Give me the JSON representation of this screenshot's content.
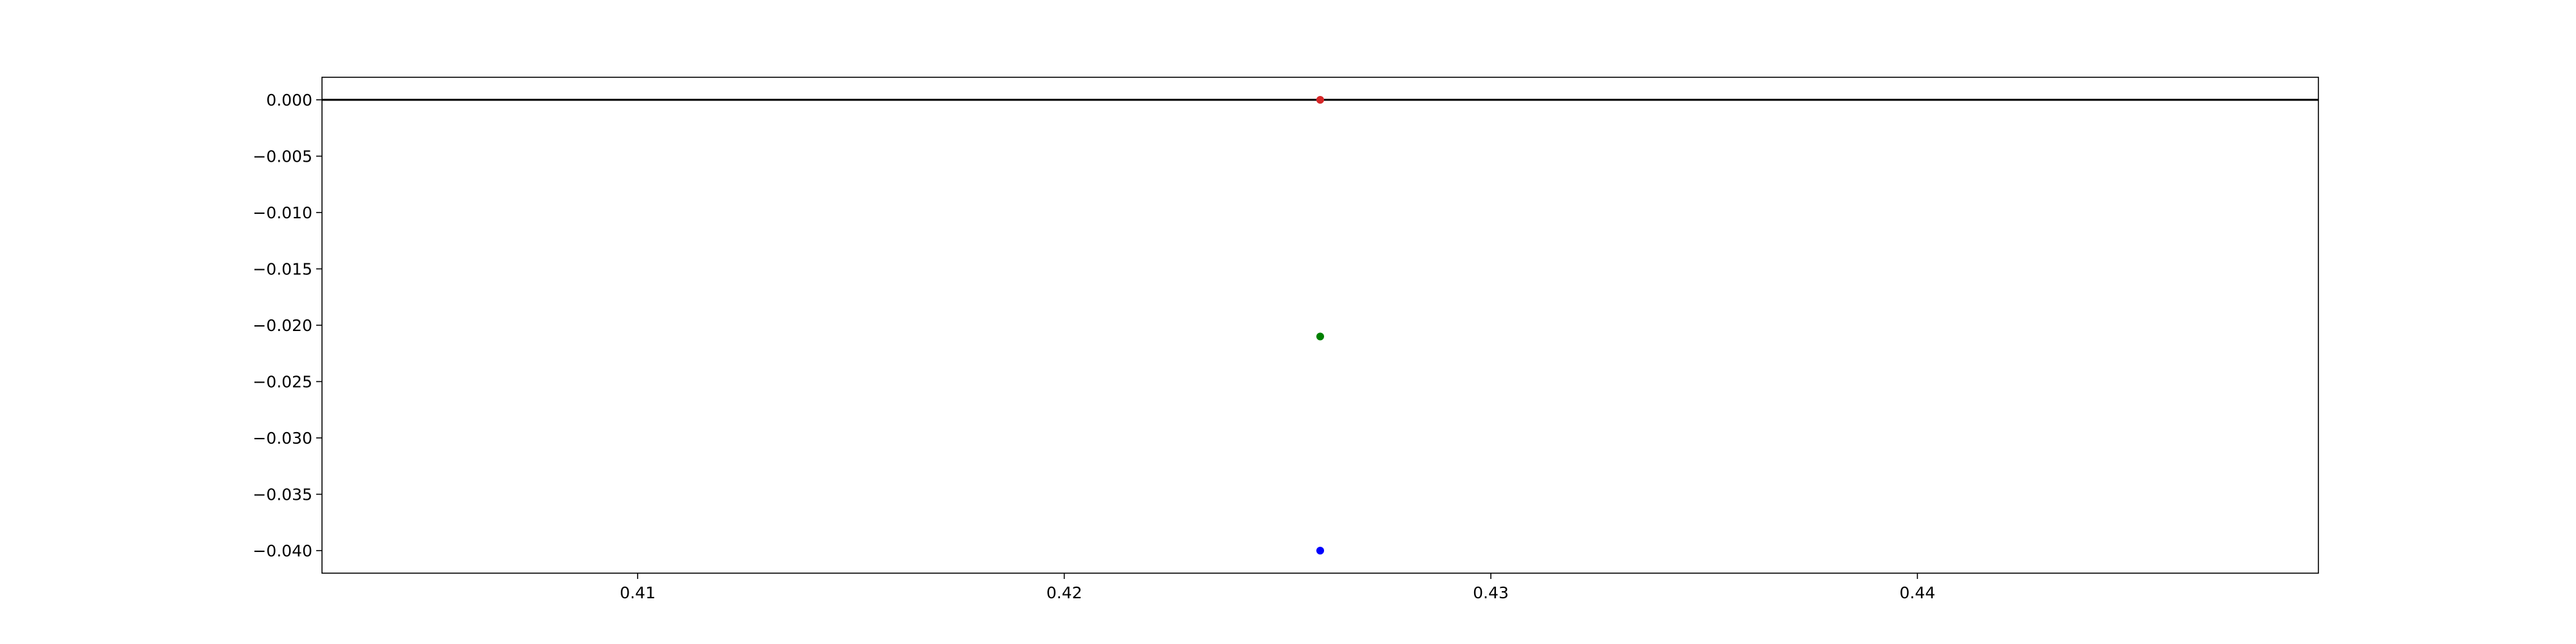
{
  "chart_data": {
    "type": "scatter",
    "title": "",
    "xlabel": "",
    "ylabel": "",
    "xlim": [
      0.4026,
      0.4494
    ],
    "ylim": [
      -0.042,
      0.002
    ],
    "x_ticks": [
      0.41,
      0.42,
      0.43,
      0.44
    ],
    "x_tick_labels": [
      "0.41",
      "0.42",
      "0.43",
      "0.44"
    ],
    "y_ticks": [
      0.0,
      -0.005,
      -0.01,
      -0.015,
      -0.02,
      -0.025,
      -0.03,
      -0.035,
      -0.04
    ],
    "y_tick_labels": [
      "0.000",
      "−0.005",
      "−0.010",
      "−0.015",
      "−0.020",
      "−0.025",
      "−0.030",
      "−0.035",
      "−0.040"
    ],
    "grid": false,
    "reference_line": {
      "y": 0.0,
      "color": "#000000"
    },
    "points": [
      {
        "x": 0.426,
        "y": 0.0,
        "color": "#d62728"
      },
      {
        "x": 0.426,
        "y": -0.021,
        "color": "#008000"
      },
      {
        "x": 0.426,
        "y": -0.04,
        "color": "#0000ff"
      }
    ]
  }
}
